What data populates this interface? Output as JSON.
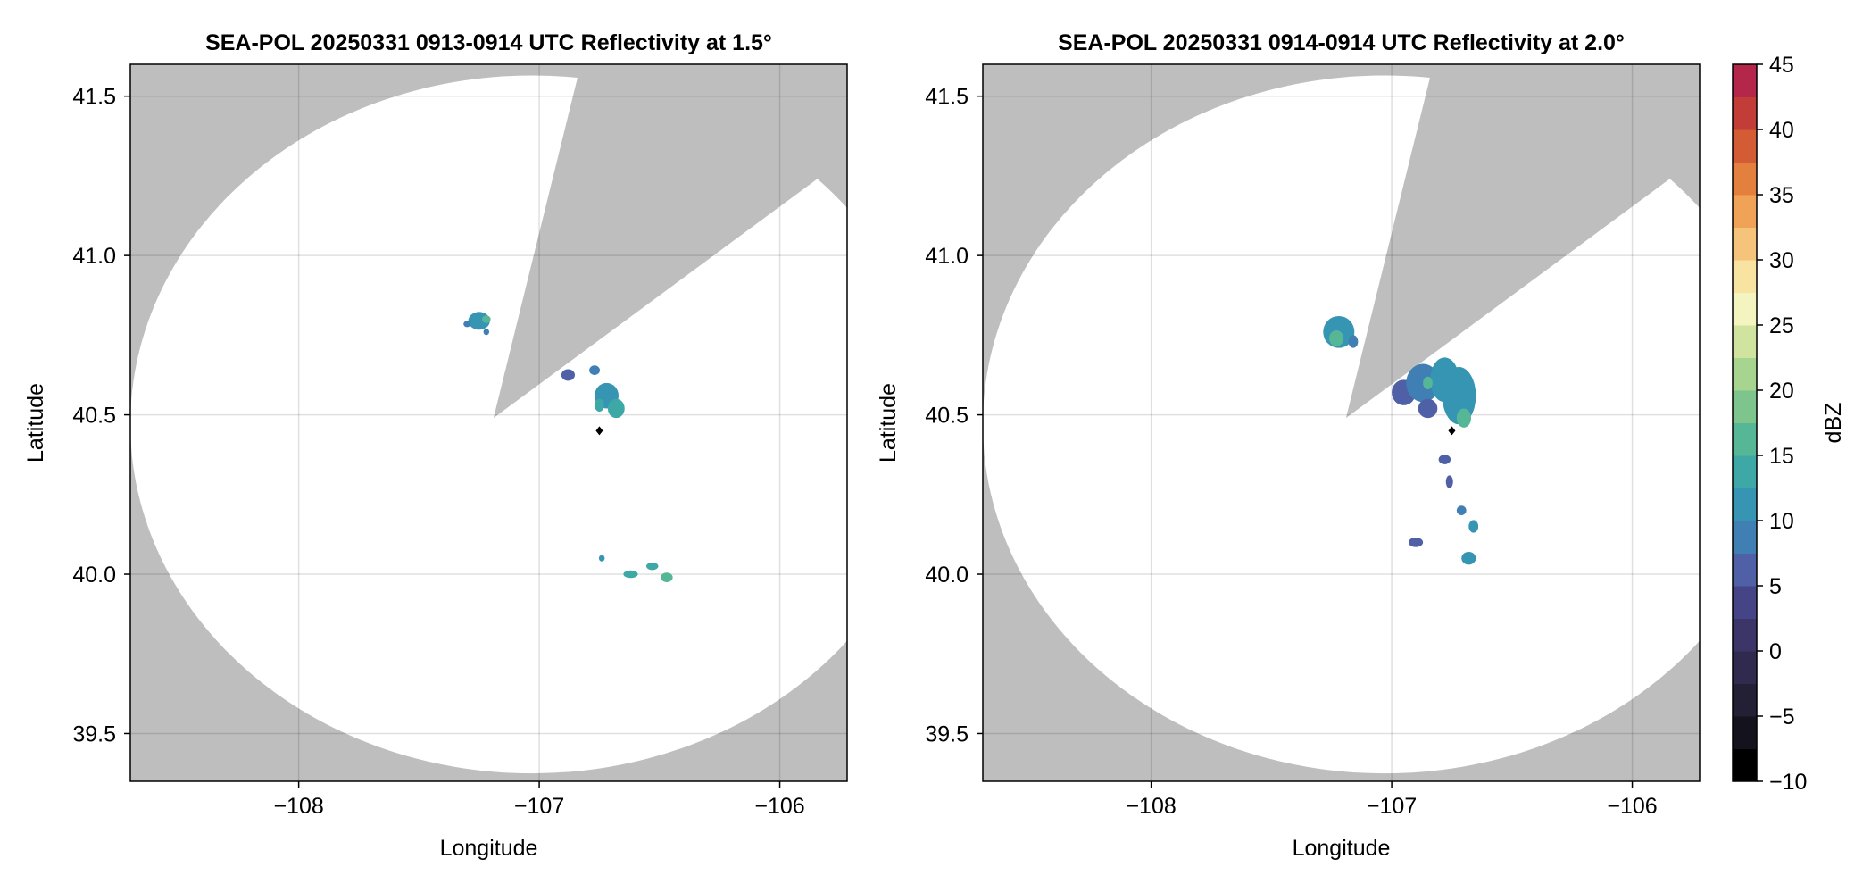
{
  "chart_data": [
    {
      "type": "heatmap",
      "title": "SEA-POL 20250331 0913-0914 UTC Reflectivity at 1.5°",
      "xlabel": "Longitude",
      "ylabel": "Latitude",
      "xlim": [
        -108.7,
        -105.72
      ],
      "ylim": [
        39.35,
        41.6
      ],
      "xticks": [
        {
          "value": -108,
          "label": "−108"
        },
        {
          "value": -107,
          "label": "−107"
        },
        {
          "value": -106,
          "label": "−106"
        }
      ],
      "yticks": [
        {
          "value": 39.5,
          "label": "39.5"
        },
        {
          "value": 40.0,
          "label": "40.0"
        },
        {
          "value": 40.5,
          "label": "40.5"
        },
        {
          "value": 41.0,
          "label": "41.0"
        },
        {
          "value": 41.5,
          "label": "41.5"
        }
      ],
      "grid": true,
      "radar_site": {
        "lon": -106.75,
        "lat": 40.45
      },
      "coverage_center": {
        "lon": -107.03,
        "lat": 40.47
      },
      "coverage_radius_deg_lon": 1.67,
      "coverage_radius_deg_lat": 1.095,
      "blocked_sector": {
        "apex": [
          -107.19,
          40.49
        ],
        "edge1": [
          -106.85,
          41.53
        ],
        "edge2": [
          -106.06,
          41.12
        ]
      },
      "echoes": [
        {
          "lon": -107.25,
          "lat": 40.795,
          "rx": 0.045,
          "ry": 0.028,
          "dbz": 12
        },
        {
          "lon": -107.22,
          "lat": 40.8,
          "rx": 0.018,
          "ry": 0.012,
          "dbz": 16
        },
        {
          "lon": -107.3,
          "lat": 40.785,
          "rx": 0.015,
          "ry": 0.01,
          "dbz": 8
        },
        {
          "lon": -107.22,
          "lat": 40.76,
          "rx": 0.012,
          "ry": 0.01,
          "dbz": 9
        },
        {
          "lon": -106.88,
          "lat": 40.625,
          "rx": 0.028,
          "ry": 0.018,
          "dbz": 6
        },
        {
          "lon": -106.77,
          "lat": 40.64,
          "rx": 0.022,
          "ry": 0.015,
          "dbz": 8
        },
        {
          "lon": -106.72,
          "lat": 40.56,
          "rx": 0.05,
          "ry": 0.04,
          "dbz": 11
        },
        {
          "lon": -106.68,
          "lat": 40.52,
          "rx": 0.035,
          "ry": 0.03,
          "dbz": 13
        },
        {
          "lon": -106.75,
          "lat": 40.53,
          "rx": 0.02,
          "ry": 0.02,
          "dbz": 14
        },
        {
          "lon": -106.74,
          "lat": 40.05,
          "rx": 0.012,
          "ry": 0.01,
          "dbz": 12
        },
        {
          "lon": -106.62,
          "lat": 40.0,
          "rx": 0.03,
          "ry": 0.012,
          "dbz": 13
        },
        {
          "lon": -106.53,
          "lat": 40.025,
          "rx": 0.025,
          "ry": 0.012,
          "dbz": 14
        },
        {
          "lon": -106.47,
          "lat": 39.99,
          "rx": 0.025,
          "ry": 0.015,
          "dbz": 16
        }
      ]
    },
    {
      "type": "heatmap",
      "title": "SEA-POL 20250331 0914-0914 UTC Reflectivity at 2.0°",
      "xlabel": "Longitude",
      "ylabel": "Latitude",
      "xlim": [
        -108.7,
        -105.72
      ],
      "ylim": [
        39.35,
        41.6
      ],
      "xticks": [
        {
          "value": -108,
          "label": "−108"
        },
        {
          "value": -107,
          "label": "−107"
        },
        {
          "value": -106,
          "label": "−106"
        }
      ],
      "yticks": [
        {
          "value": 39.5,
          "label": "39.5"
        },
        {
          "value": 40.0,
          "label": "40.0"
        },
        {
          "value": 40.5,
          "label": "40.5"
        },
        {
          "value": 41.0,
          "label": "41.0"
        },
        {
          "value": 41.5,
          "label": "41.5"
        }
      ],
      "grid": true,
      "radar_site": {
        "lon": -106.75,
        "lat": 40.45
      },
      "coverage_center": {
        "lon": -107.03,
        "lat": 40.47
      },
      "coverage_radius_deg_lon": 1.67,
      "coverage_radius_deg_lat": 1.095,
      "blocked_sector": {
        "apex": [
          -107.19,
          40.49
        ],
        "edge1": [
          -106.85,
          41.53
        ],
        "edge2": [
          -106.06,
          41.12
        ]
      },
      "echoes": [
        {
          "lon": -107.22,
          "lat": 40.76,
          "rx": 0.065,
          "ry": 0.05,
          "dbz": 11
        },
        {
          "lon": -107.23,
          "lat": 40.74,
          "rx": 0.03,
          "ry": 0.025,
          "dbz": 16
        },
        {
          "lon": -107.16,
          "lat": 40.73,
          "rx": 0.02,
          "ry": 0.02,
          "dbz": 8
        },
        {
          "lon": -106.95,
          "lat": 40.57,
          "rx": 0.05,
          "ry": 0.04,
          "dbz": 5
        },
        {
          "lon": -106.87,
          "lat": 40.6,
          "rx": 0.07,
          "ry": 0.06,
          "dbz": 9
        },
        {
          "lon": -106.78,
          "lat": 40.61,
          "rx": 0.06,
          "ry": 0.07,
          "dbz": 10
        },
        {
          "lon": -106.72,
          "lat": 40.56,
          "rx": 0.07,
          "ry": 0.09,
          "dbz": 10
        },
        {
          "lon": -106.85,
          "lat": 40.52,
          "rx": 0.04,
          "ry": 0.03,
          "dbz": 6
        },
        {
          "lon": -106.85,
          "lat": 40.6,
          "rx": 0.02,
          "ry": 0.02,
          "dbz": 16
        },
        {
          "lon": -106.7,
          "lat": 40.49,
          "rx": 0.03,
          "ry": 0.03,
          "dbz": 16
        },
        {
          "lon": -106.78,
          "lat": 40.36,
          "rx": 0.025,
          "ry": 0.015,
          "dbz": 5
        },
        {
          "lon": -106.76,
          "lat": 40.29,
          "rx": 0.015,
          "ry": 0.02,
          "dbz": 7
        },
        {
          "lon": -106.71,
          "lat": 40.2,
          "rx": 0.02,
          "ry": 0.015,
          "dbz": 8
        },
        {
          "lon": -106.66,
          "lat": 40.15,
          "rx": 0.02,
          "ry": 0.02,
          "dbz": 10
        },
        {
          "lon": -106.9,
          "lat": 40.1,
          "rx": 0.03,
          "ry": 0.015,
          "dbz": 6
        },
        {
          "lon": -106.68,
          "lat": 40.05,
          "rx": 0.03,
          "ry": 0.02,
          "dbz": 11
        }
      ]
    }
  ],
  "colorbar": {
    "label": "dBZ",
    "min": -10,
    "max": 45,
    "step": 2.5,
    "ticks": [
      {
        "value": 45,
        "label": "45"
      },
      {
        "value": 40,
        "label": "40"
      },
      {
        "value": 35,
        "label": "35"
      },
      {
        "value": 30,
        "label": "30"
      },
      {
        "value": 25,
        "label": "25"
      },
      {
        "value": 20,
        "label": "20"
      },
      {
        "value": 15,
        "label": "15"
      },
      {
        "value": 10,
        "label": "10"
      },
      {
        "value": 5,
        "label": "5"
      },
      {
        "value": 0,
        "label": "0"
      },
      {
        "value": -5,
        "label": "−5"
      },
      {
        "value": -10,
        "label": "−10"
      }
    ],
    "colors": [
      "#000000",
      "#14121c",
      "#231f34",
      "#302a4e",
      "#3b3568",
      "#454486",
      "#4f60a6",
      "#3f7fb3",
      "#3595b2",
      "#3da8a6",
      "#56b796",
      "#7ec48d",
      "#a7d48e",
      "#d0e4a0",
      "#f4f4c0",
      "#f8e3a0",
      "#f5c37a",
      "#f0a256",
      "#e4803e",
      "#d45c35",
      "#c23c38",
      "#b4264a",
      "#a5174f",
      "#b93b78",
      "#cf5f9b",
      "#e28cbc",
      "#eeb4d4",
      "#d8a4d0",
      "#b680ba",
      "#9260a2",
      "#6f4084",
      "#4c1f62",
      "#2e0b3f"
    ]
  },
  "colors": {
    "blocked": "#bebebe",
    "coverage": "#ffffff",
    "grid": "#d9d9d9",
    "site_marker": "#000000"
  }
}
